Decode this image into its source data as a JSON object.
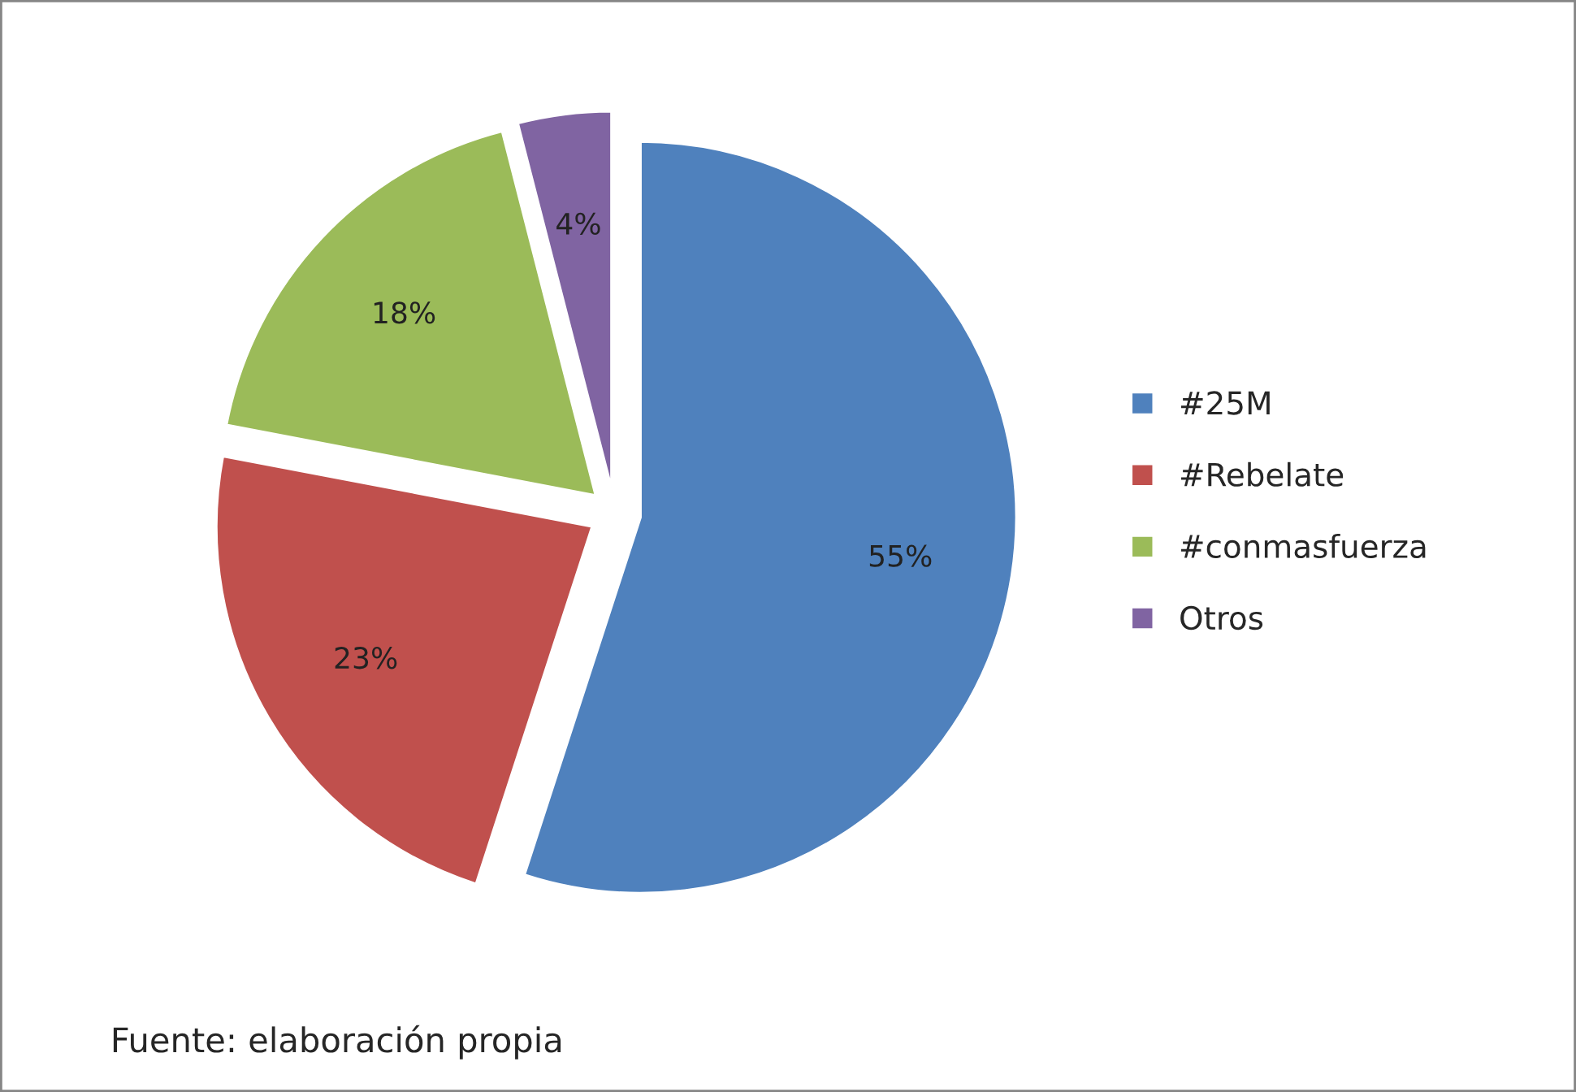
{
  "chart_data": {
    "type": "pie",
    "categories": [
      "#25M",
      "#Rebelate",
      "#conmasfuerza",
      "Otros"
    ],
    "values": [
      55,
      23,
      18,
      4
    ],
    "colors": [
      "#4f81bd",
      "#c0504d",
      "#9bbb59",
      "#8064a2"
    ],
    "value_labels": [
      "55%",
      "23%",
      "18%",
      "4%"
    ],
    "legend": "right",
    "annotations": [
      "Fuente: elaboración propia"
    ]
  }
}
